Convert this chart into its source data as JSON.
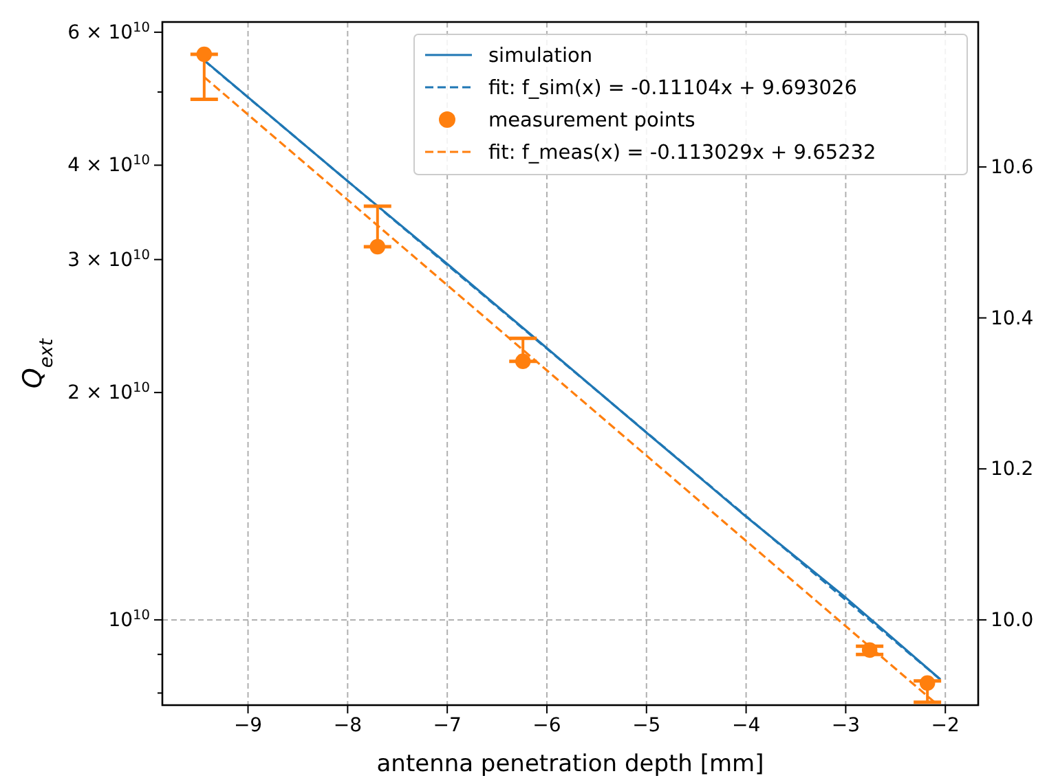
{
  "chart_data": {
    "type": "line",
    "xlabel": "antenna penetration depth [mm]",
    "ylabel": "Q$_{ext}$",
    "xlim": [
      -9.86,
      -1.67
    ],
    "xticks": [
      {
        "value": -9,
        "label": "−9"
      },
      {
        "value": -8,
        "label": "−8"
      },
      {
        "value": -7,
        "label": "−7"
      },
      {
        "value": -6,
        "label": "−6"
      },
      {
        "value": -5,
        "label": "−5"
      },
      {
        "value": -4,
        "label": "−4"
      },
      {
        "value": -3,
        "label": "−3"
      },
      {
        "value": -2,
        "label": "−2"
      }
    ],
    "ylim": [
      7710000000.0,
      61900000000.0
    ],
    "yticks": [
      {
        "value": 8000000000.0,
        "label": null
      },
      {
        "value": 9000000000.0,
        "label": null
      },
      {
        "value": 10000000000.0,
        "label": "10$^{10}$"
      },
      {
        "value": 20000000000.0,
        "label": "2 × 10$^{10}$"
      },
      {
        "value": 30000000000.0,
        "label": "3 × 10$^{10}$"
      },
      {
        "value": 40000000000.0,
        "label": "4 × 10$^{10}$"
      },
      {
        "value": 50000000000.0,
        "label": null
      },
      {
        "value": 60000000000.0,
        "label": "6 × 10$^{10}$"
      }
    ],
    "y2lim": [
      9.887,
      10.792
    ],
    "y2ticks": [
      {
        "value": 10.0,
        "label": "10.0"
      },
      {
        "value": 10.2,
        "label": "10.2"
      },
      {
        "value": 10.4,
        "label": "10.4"
      },
      {
        "value": 10.6,
        "label": "10.6"
      }
    ],
    "log": "y",
    "grid": true,
    "legend": "top right",
    "series": [
      {
        "name": "simulation",
        "type": "line",
        "color": "#1f77b4",
        "line_style": "solid",
        "x": [
          -9.42,
          -8,
          -7,
          -6,
          -5,
          -4,
          -3,
          -2.05
        ],
        "values": [
          54800000000.0,
          38100000000.0,
          29600000000.0,
          22900000000.0,
          17700000000.0,
          13700000000.0,
          10700000000.0,
          8340000000.0
        ]
      },
      {
        "name": "fit: f_sim(x) = -0.11104x + 9.693026",
        "type": "line",
        "axis": "y2",
        "color": "#1f77b4",
        "line_style": "dashed",
        "x": [
          -9.44,
          -2.05
        ],
        "values": [
          10.741,
          9.921
        ]
      },
      {
        "name": "measurement points",
        "type": "scatter",
        "marker": "circle",
        "color": "#ff7f0e",
        "x": [
          -9.44,
          -7.7,
          -6.24,
          -2.76,
          -2.18
        ],
        "values": [
          56100000000.0,
          31200000000.0,
          22000000000.0,
          9120000000.0,
          8250000000.0
        ],
        "errors": [
          [
            48900000000.0,
            56100000000.0
          ],
          [
            31200000000.0,
            35300000000.0
          ],
          [
            22000000000.0,
            23600000000.0
          ],
          [
            9000000000.0,
            9230000000.0
          ],
          [
            7780000000.0,
            8300000000.0
          ]
        ]
      },
      {
        "name": "fit: f_meas(x) = -0.113029x + 9.65232",
        "type": "line",
        "axis": "y2",
        "color": "#ff7f0e",
        "line_style": "dashed",
        "x": [
          -9.44,
          -2.1
        ],
        "values": [
          10.719,
          9.89
        ]
      }
    ]
  }
}
